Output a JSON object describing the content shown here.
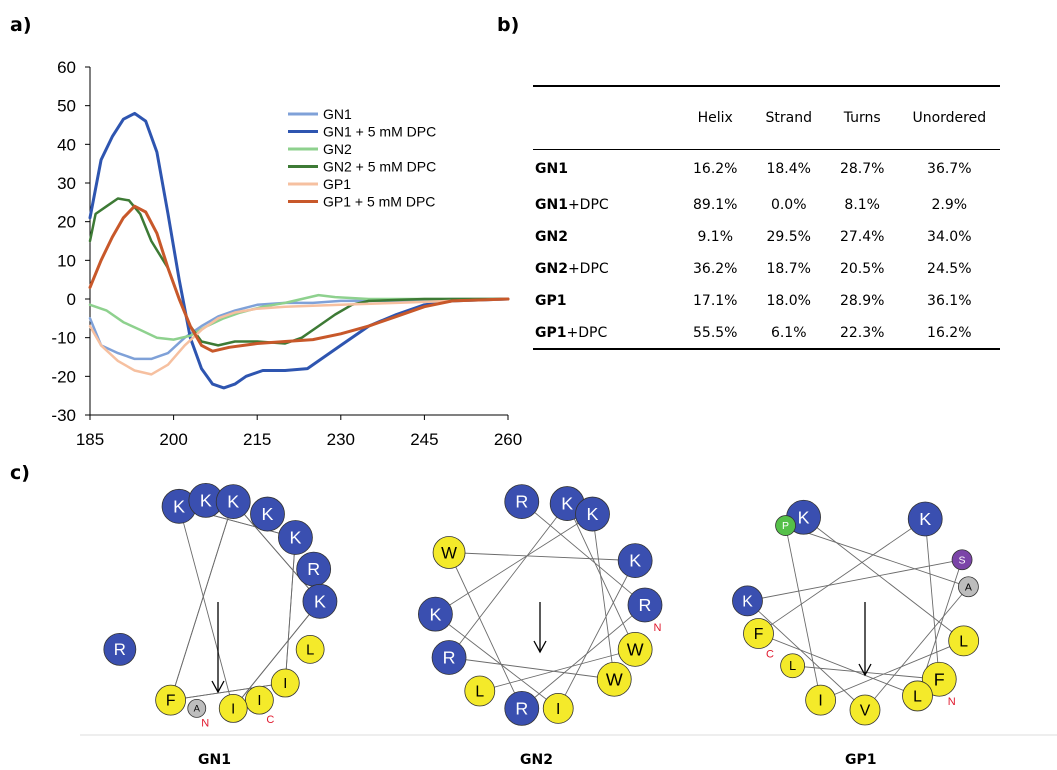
{
  "panels": {
    "a": "a)",
    "b": "b)",
    "c": "c)"
  },
  "chart_data": {
    "type": "line",
    "xlim": [
      185,
      260
    ],
    "ylim": [
      -30,
      60
    ],
    "xticks": [
      "185",
      "200",
      "215",
      "230",
      "245",
      "260"
    ],
    "yticks": [
      "60",
      "50",
      "40",
      "30",
      "20",
      "10",
      "0",
      "-10",
      "-20",
      "-30"
    ],
    "grid": false,
    "legend_position": "top-right",
    "series": [
      {
        "name": "GN1",
        "color": "#7fa1d8",
        "width": 2.5,
        "points": [
          [
            185,
            -5
          ],
          [
            187,
            -12
          ],
          [
            190,
            -14
          ],
          [
            193,
            -15.5
          ],
          [
            196,
            -15.5
          ],
          [
            199,
            -14
          ],
          [
            202,
            -10
          ],
          [
            205,
            -7
          ],
          [
            208,
            -4.5
          ],
          [
            211,
            -3
          ],
          [
            215,
            -1.5
          ],
          [
            220,
            -1
          ],
          [
            225,
            -1
          ],
          [
            230,
            -0.5
          ],
          [
            240,
            -0.5
          ],
          [
            250,
            0
          ],
          [
            260,
            0
          ]
        ]
      },
      {
        "name": "GN1 + 5 mM DPC",
        "color": "#2e55b0",
        "width": 3,
        "points": [
          [
            185,
            21
          ],
          [
            187,
            36
          ],
          [
            189,
            42
          ],
          [
            191,
            46.5
          ],
          [
            193,
            48
          ],
          [
            195,
            46
          ],
          [
            197,
            38
          ],
          [
            199,
            22
          ],
          [
            201,
            5
          ],
          [
            203,
            -10
          ],
          [
            205,
            -18
          ],
          [
            207,
            -22
          ],
          [
            209,
            -23
          ],
          [
            211,
            -22
          ],
          [
            213,
            -20
          ],
          [
            216,
            -18.5
          ],
          [
            220,
            -18.5
          ],
          [
            224,
            -18
          ],
          [
            227,
            -15
          ],
          [
            230,
            -12
          ],
          [
            235,
            -7
          ],
          [
            240,
            -4
          ],
          [
            245,
            -1.5
          ],
          [
            250,
            -0.5
          ],
          [
            260,
            0
          ]
        ]
      },
      {
        "name": "GN2",
        "color": "#8ed18e",
        "width": 2.5,
        "points": [
          [
            185,
            -1.5
          ],
          [
            188,
            -3
          ],
          [
            191,
            -6
          ],
          [
            194,
            -8
          ],
          [
            197,
            -10
          ],
          [
            200,
            -10.5
          ],
          [
            203,
            -9.5
          ],
          [
            206,
            -7
          ],
          [
            209,
            -5
          ],
          [
            212,
            -3.5
          ],
          [
            216,
            -2
          ],
          [
            220,
            -1
          ],
          [
            223,
            0
          ],
          [
            226,
            1
          ],
          [
            229,
            0.5
          ],
          [
            235,
            0
          ],
          [
            245,
            0
          ],
          [
            260,
            0
          ]
        ]
      },
      {
        "name": "GN2 + 5 mM DPC",
        "color": "#3d7a35",
        "width": 2.5,
        "points": [
          [
            185,
            15
          ],
          [
            186,
            22
          ],
          [
            188,
            24
          ],
          [
            190,
            26
          ],
          [
            192,
            25.5
          ],
          [
            194,
            22
          ],
          [
            196,
            15
          ],
          [
            199,
            8
          ],
          [
            201,
            0
          ],
          [
            203,
            -7
          ],
          [
            205,
            -11
          ],
          [
            208,
            -12
          ],
          [
            211,
            -11
          ],
          [
            215,
            -11
          ],
          [
            220,
            -11.5
          ],
          [
            223,
            -10
          ],
          [
            226,
            -7
          ],
          [
            229,
            -4
          ],
          [
            232,
            -1.5
          ],
          [
            235,
            -0.5
          ],
          [
            245,
            0
          ],
          [
            260,
            0
          ]
        ]
      },
      {
        "name": "GP1",
        "color": "#f6c0a0",
        "width": 2.5,
        "points": [
          [
            185,
            -7
          ],
          [
            187,
            -12
          ],
          [
            190,
            -16
          ],
          [
            193,
            -18.5
          ],
          [
            196,
            -19.5
          ],
          [
            199,
            -17
          ],
          [
            202,
            -12
          ],
          [
            205,
            -8
          ],
          [
            208,
            -5
          ],
          [
            211,
            -3.5
          ],
          [
            215,
            -2.5
          ],
          [
            220,
            -2
          ],
          [
            230,
            -1.5
          ],
          [
            240,
            -1
          ],
          [
            250,
            -0.5
          ],
          [
            260,
            0
          ]
        ]
      },
      {
        "name": "GP1 + 5 mM DPC",
        "color": "#c8582a",
        "width": 3,
        "points": [
          [
            185,
            3
          ],
          [
            187,
            10
          ],
          [
            189,
            16
          ],
          [
            191,
            21
          ],
          [
            193,
            24
          ],
          [
            195,
            22.5
          ],
          [
            197,
            17
          ],
          [
            199,
            8
          ],
          [
            201,
            0
          ],
          [
            203,
            -7
          ],
          [
            205,
            -12
          ],
          [
            207,
            -13.5
          ],
          [
            210,
            -12.5
          ],
          [
            215,
            -11.5
          ],
          [
            220,
            -11
          ],
          [
            225,
            -10.5
          ],
          [
            230,
            -9
          ],
          [
            235,
            -7
          ],
          [
            240,
            -4.5
          ],
          [
            245,
            -2
          ],
          [
            250,
            -0.5
          ],
          [
            260,
            0
          ]
        ]
      }
    ]
  },
  "table": {
    "columns": [
      "",
      "Helix",
      "Strand",
      "Turns",
      "Unordered"
    ],
    "rows": [
      {
        "name": "GN1",
        "suffix": "",
        "values": [
          "16.2%",
          "18.4%",
          "28.7%",
          "36.7%"
        ]
      },
      {
        "name": "GN1",
        "suffix": "+DPC",
        "values": [
          "89.1%",
          "0.0%",
          "8.1%",
          "2.9%"
        ]
      },
      {
        "name": "GN2",
        "suffix": "",
        "values": [
          "9.1%",
          "29.5%",
          "27.4%",
          "34.0%"
        ]
      },
      {
        "name": "GN2",
        "suffix": "+DPC",
        "values": [
          "36.2%",
          "18.7%",
          "20.5%",
          "24.5%"
        ]
      },
      {
        "name": "GP1",
        "suffix": "",
        "values": [
          "17.1%",
          "18.0%",
          "28.9%",
          "36.1%"
        ]
      },
      {
        "name": "GP1",
        "suffix": "+DPC",
        "values": [
          "55.5%",
          "6.1%",
          "22.3%",
          "16.2%"
        ]
      }
    ]
  },
  "wheel_colors": {
    "K": "#3a4fb0",
    "R": "#3a4fb0",
    "F": "#f4ea2a",
    "L": "#f4ea2a",
    "I": "#f4ea2a",
    "W": "#f4ea2a",
    "V": "#f4ea2a",
    "A": "#bdbdbd",
    "P": "#55c049",
    "S": "#7b44a8"
  },
  "wheels": [
    {
      "title": "GN1",
      "residues": [
        "K",
        "K",
        "K",
        "K",
        "K",
        "R",
        "K",
        "L",
        "I",
        "I",
        "I",
        "A",
        "F",
        "R"
      ],
      "terminals": [
        {
          "text": "N",
          "near": 11
        },
        {
          "text": "C",
          "near": 9
        }
      ]
    },
    {
      "title": "GN2",
      "residues": [
        "R",
        "K",
        "K",
        "K",
        "R",
        "W",
        "W",
        "I",
        "R",
        "L",
        "R",
        "K",
        "W"
      ],
      "terminals": [
        {
          "text": "N",
          "near": 4
        }
      ]
    },
    {
      "title": "GP1",
      "residues": [
        "K",
        "K",
        "S",
        "A",
        "L",
        "F",
        "L",
        "V",
        "I",
        "L",
        "F",
        "K",
        "P"
      ],
      "terminals": [
        {
          "text": "N",
          "near": 5
        },
        {
          "text": "C",
          "near": 10
        }
      ]
    }
  ]
}
